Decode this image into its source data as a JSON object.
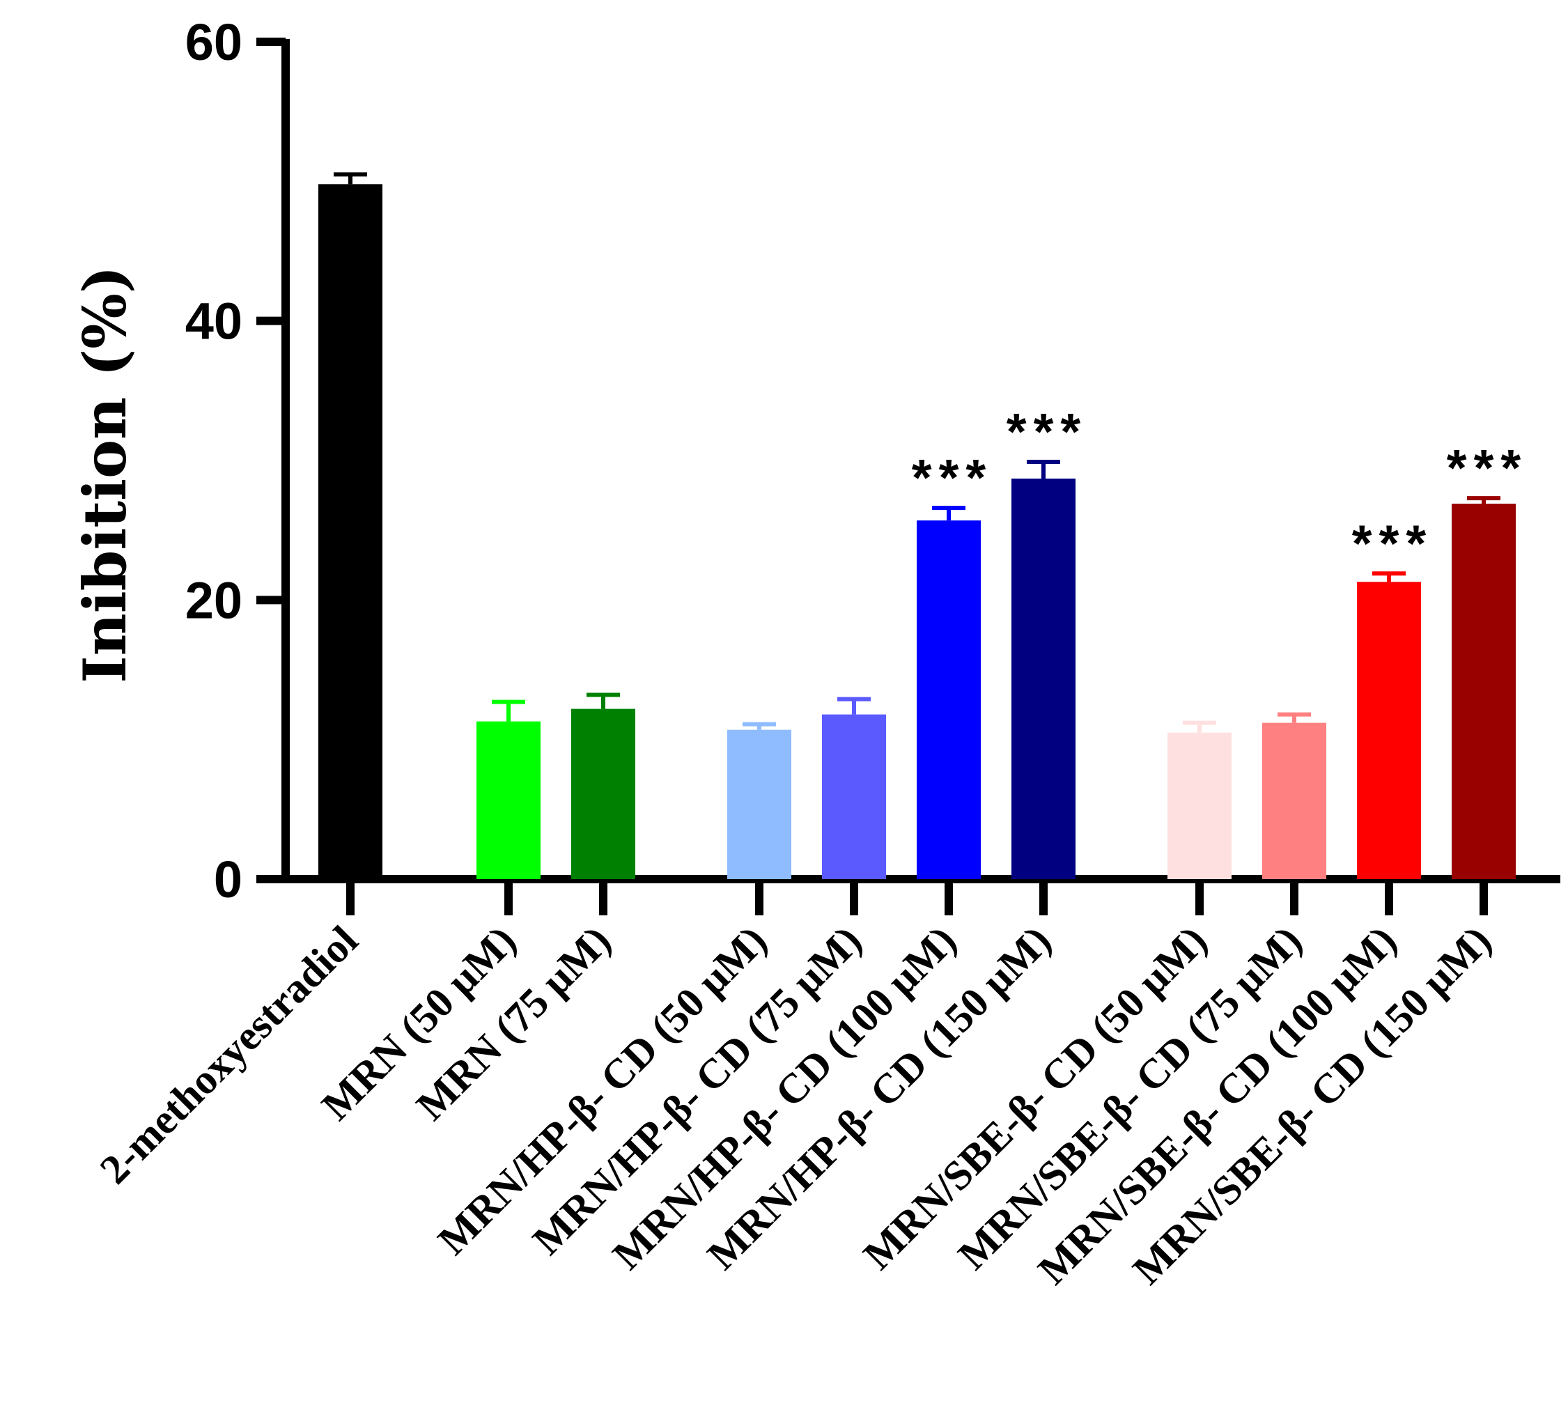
{
  "chart_data": {
    "type": "bar",
    "title": "",
    "xlabel": "",
    "ylabel": "Inibition (%)",
    "ylim": [
      0,
      60
    ],
    "yticks": [
      0,
      20,
      40,
      60
    ],
    "grid": false,
    "legend": "none",
    "categories": [
      "2-methoxyestradiol",
      "MRN (50 μM)",
      "MRN (75 μM)",
      "MRN/HP-β- CD (50 μM)",
      "MRN/HP-β- CD (75 μM)",
      "MRN/HP-β- CD (100 μM)",
      "MRN/HP-β- CD (150 μM)",
      "MRN/SBE-β- CD (50 μM)",
      "MRN/SBE-β- CD (75 μM)",
      "MRN/SBE-β- CD (100 μM)",
      "MRN/SBE-β- CD (150 μM)"
    ],
    "values": [
      49.8,
      11.3,
      12.2,
      10.7,
      11.8,
      25.7,
      28.7,
      10.5,
      11.2,
      21.3,
      26.9
    ],
    "errors": [
      0.7,
      1.4,
      1.0,
      0.4,
      1.1,
      0.9,
      1.2,
      0.7,
      0.6,
      0.6,
      0.4
    ],
    "colors": [
      "#000000",
      "#00ff00",
      "#008000",
      "#8fbcff",
      "#5a5aff",
      "#0000ff",
      "#000080",
      "#ffe0e0",
      "#ff8080",
      "#ff0000",
      "#990000"
    ],
    "significance": [
      "",
      "",
      "",
      "",
      "",
      "***",
      "***",
      "",
      "",
      "***",
      "***"
    ]
  }
}
